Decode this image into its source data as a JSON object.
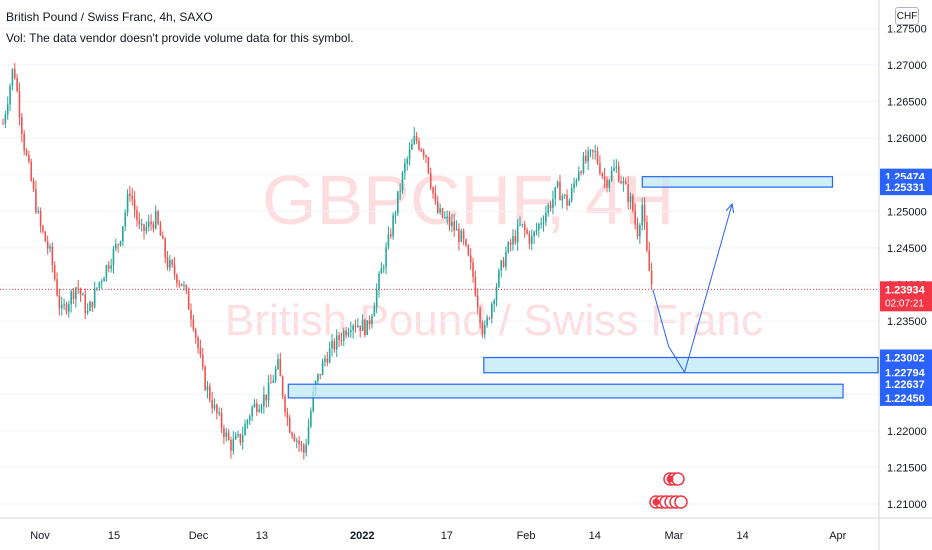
{
  "header": {
    "title": "British Pound / Swiss Franc, 4h, SAXO",
    "volume_note": "Vol: The data vendor doesn't provide volume data for this symbol."
  },
  "watermark": {
    "symbol": "GBPCHF, 4H",
    "name": "British Pound / Swiss Franc"
  },
  "currency_label": "CHF",
  "colors": {
    "up": "#26a69a",
    "down": "#ef5350",
    "zone_fill": "#bfe9f5",
    "zone_border": "#2962ff",
    "price_label_bg": "#2962ff",
    "current_price_bg": "#f23645",
    "projection": "#2962ff"
  },
  "chart_data": {
    "type": "candlestick",
    "symbol": "GBPCHF",
    "timeframe": "4h",
    "source": "SAXO",
    "ylim": [
      1.2075,
      1.2775
    ],
    "y_ticks": [
      1.21,
      1.215,
      1.22,
      1.225,
      1.23,
      1.235,
      1.24,
      1.245,
      1.25,
      1.255,
      1.26,
      1.265,
      1.27,
      1.275
    ],
    "y_tick_labels": [
      "1.21000",
      "1.21500",
      "1.22000",
      "1.22500",
      "1.23000",
      "1.23500",
      "1.24000",
      "1.24500",
      "1.25000",
      "1.25500",
      "1.26000",
      "1.26500",
      "1.27000",
      "1.27500"
    ],
    "x_labels": [
      "Nov",
      "15",
      "Dec",
      "13",
      "2022",
      "17",
      "Feb",
      "14",
      "Mar",
      "14",
      "Apr"
    ],
    "price_path": [
      [
        "Oct 25",
        1.262
      ],
      [
        "Oct 27",
        1.27
      ],
      [
        "Oct 29",
        1.259
      ],
      [
        "Nov 1",
        1.248
      ],
      [
        "Nov 3",
        1.244
      ],
      [
        "Nov 5",
        1.236
      ],
      [
        "Nov 8",
        1.24
      ],
      [
        "Nov 10",
        1.236
      ],
      [
        "Nov 12",
        1.24
      ],
      [
        "Nov 16",
        1.246
      ],
      [
        "Nov 18",
        1.253
      ],
      [
        "Nov 20",
        1.247
      ],
      [
        "Nov 23",
        1.249
      ],
      [
        "Nov 25",
        1.243
      ],
      [
        "Nov 28",
        1.24
      ],
      [
        "Nov 30",
        1.235
      ],
      [
        "Dec 2",
        1.227
      ],
      [
        "Dec 4",
        1.223
      ],
      [
        "Dec 7",
        1.218
      ],
      [
        "Dec 9",
        1.219
      ],
      [
        "Dec 11",
        1.223
      ],
      [
        "Dec 14",
        1.225
      ],
      [
        "Dec 16",
        1.229
      ],
      [
        "Dec 18",
        1.221
      ],
      [
        "Dec 21",
        1.217
      ],
      [
        "Dec 23",
        1.226
      ],
      [
        "Dec 25",
        1.23
      ],
      [
        "Dec 28",
        1.233
      ],
      [
        "Dec 30",
        1.235
      ],
      [
        "Jan 2",
        1.234
      ],
      [
        "Jan 4",
        1.24
      ],
      [
        "Jan 6",
        1.246
      ],
      [
        "Jan 9",
        1.256
      ],
      [
        "Jan 11",
        1.26
      ],
      [
        "Jan 13",
        1.258
      ],
      [
        "Jan 15",
        1.25
      ],
      [
        "Jan 18",
        1.248
      ],
      [
        "Jan 20",
        1.246
      ],
      [
        "Jan 22",
        1.241
      ],
      [
        "Jan 24",
        1.233
      ],
      [
        "Jan 26",
        1.239
      ],
      [
        "Jan 28",
        1.244
      ],
      [
        "Jan 31",
        1.248
      ],
      [
        "Feb 2",
        1.246
      ],
      [
        "Feb 4",
        1.249
      ],
      [
        "Feb 7",
        1.253
      ],
      [
        "Feb 9",
        1.251
      ],
      [
        "Feb 11",
        1.256
      ],
      [
        "Feb 14",
        1.258
      ],
      [
        "Feb 16",
        1.254
      ],
      [
        "Feb 18",
        1.256
      ],
      [
        "Feb 21",
        1.251
      ],
      [
        "Feb 22",
        1.247
      ],
      [
        "Feb 23",
        1.251
      ],
      [
        "Feb 24",
        1.243
      ],
      [
        "Feb 25",
        1.2393
      ]
    ],
    "zones": [
      {
        "top": 1.25474,
        "bottom": 1.25331,
        "from": "Feb 23",
        "to": "Mar 31"
      },
      {
        "top": 1.23002,
        "bottom": 1.22794,
        "from": "Jan 24",
        "to": "Apr 10"
      },
      {
        "top": 1.22637,
        "bottom": 1.2245,
        "from": "Dec 18",
        "to": "Apr 2"
      }
    ],
    "projection": [
      [
        "Feb 25",
        1.2393
      ],
      [
        "Feb 28",
        1.2315
      ],
      [
        "Mar 3",
        1.228
      ],
      [
        "Mar 12",
        1.251
      ]
    ],
    "price_labels": [
      "1.25474",
      "1.25331",
      "1.23002",
      "1.22794",
      "1.22637",
      "1.22450"
    ],
    "current_price": {
      "value": 1.23934,
      "label": "1.23934",
      "countdown": "02:07:21"
    }
  }
}
